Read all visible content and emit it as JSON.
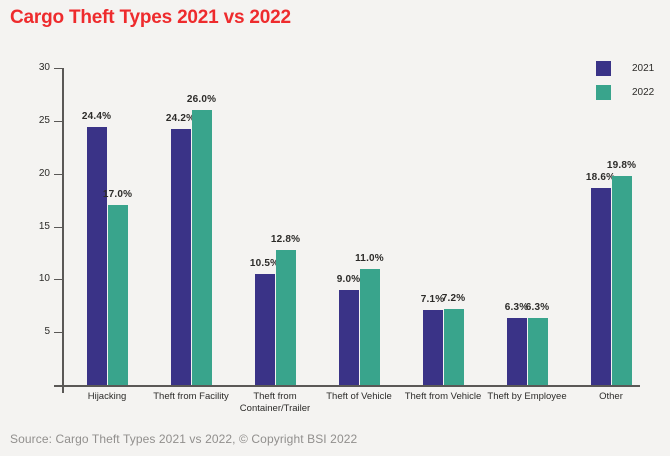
{
  "title": "Cargo Theft Types 2021 vs 2022",
  "source": "Source: Cargo Theft Types 2021 vs 2022, © Copyright BSI 2022",
  "colors": {
    "background": "#f4f3f1",
    "title": "#ee2b2d",
    "series_2021": "#3a3387",
    "series_2022": "#39a48c",
    "axis": "#5a5856",
    "text": "#2c2b29",
    "source_text": "#918f8d"
  },
  "legend": {
    "items": [
      {
        "label": "2021",
        "color": "#3a3387"
      },
      {
        "label": "2022",
        "color": "#39a48c"
      }
    ]
  },
  "chart_data": {
    "type": "bar",
    "title": "Cargo Theft Types 2021 vs 2022",
    "categories": [
      "Hijacking",
      "Theft from Facility",
      "Theft from Container/Trailer",
      "Theft of Vehicle",
      "Theft from Vehicle",
      "Theft by Employee",
      "Other"
    ],
    "series": [
      {
        "name": "2021",
        "color": "#3a3387",
        "values": [
          24.4,
          24.2,
          10.5,
          9.0,
          7.1,
          6.3,
          18.6
        ]
      },
      {
        "name": "2022",
        "color": "#39a48c",
        "values": [
          17.0,
          26.0,
          12.8,
          11.0,
          7.2,
          6.3,
          19.8
        ]
      }
    ],
    "value_labels": [
      [
        "24.4%",
        "24.2%",
        "10.5%",
        "9.0%",
        "7.1%",
        "6.3%",
        "18.6%"
      ],
      [
        "17.0%",
        "26.0%",
        "12.8%",
        "11.0%",
        "7.2%",
        "6.3%",
        "19.8%"
      ]
    ],
    "unit": "%",
    "xlabel": "",
    "ylabel": "",
    "yticks": [
      5,
      10,
      15,
      20,
      25,
      30
    ],
    "ylim": [
      0,
      30
    ],
    "grid": false,
    "legend_position": "top-right"
  }
}
